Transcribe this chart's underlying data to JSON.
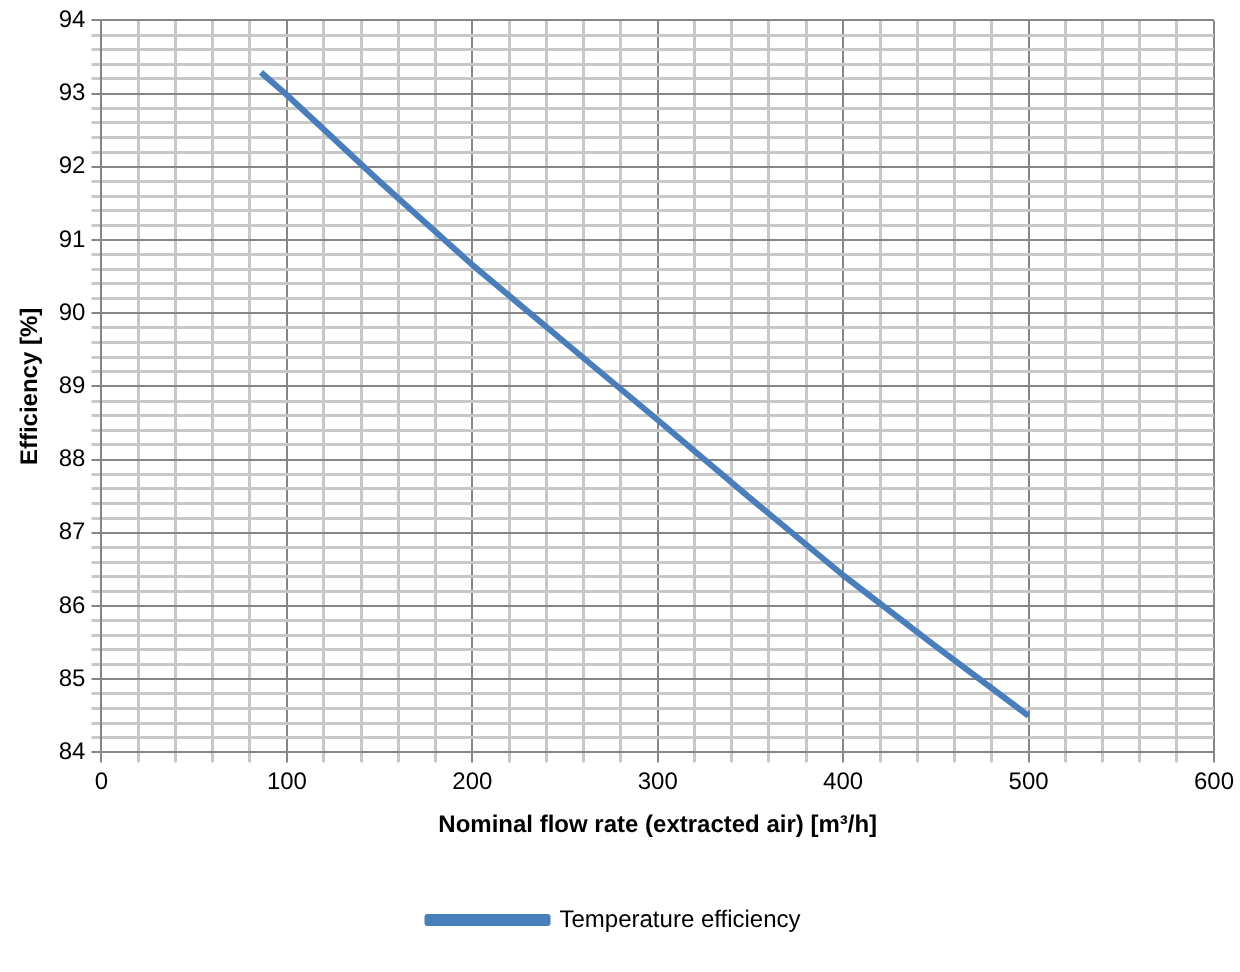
{
  "chart_data": {
    "type": "line",
    "xlabel": "Nominal flow rate (extracted air) [m³/h]",
    "ylabel": "Efficiency [%]",
    "x": [
      86,
      100,
      150,
      200,
      250,
      300,
      350,
      400,
      450,
      500
    ],
    "series": [
      {
        "name": "Temperature efficiency",
        "color": "#4a7ebb",
        "values": [
          93.29,
          92.98,
          91.8,
          90.66,
          89.6,
          88.54,
          87.47,
          86.42,
          85.45,
          84.5
        ]
      }
    ],
    "xlim": [
      0,
      600
    ],
    "xticks": [
      0,
      {
        "value": 20,
        "label": null
      },
      {
        "value": 40,
        "label": null
      },
      {
        "value": 60,
        "label": null
      },
      {
        "value": 80,
        "label": null
      },
      100,
      {
        "value": 120,
        "label": null
      },
      {
        "value": 140,
        "label": null
      },
      {
        "value": 160,
        "label": null
      },
      {
        "value": 180,
        "label": null
      },
      200,
      {
        "value": 220,
        "label": null
      },
      {
        "value": 240,
        "label": null
      },
      {
        "value": 260,
        "label": null
      },
      {
        "value": 280,
        "label": null
      },
      300,
      {
        "value": 320,
        "label": null
      },
      {
        "value": 340,
        "label": null
      },
      {
        "value": 360,
        "label": null
      },
      {
        "value": 380,
        "label": null
      },
      400,
      {
        "value": 420,
        "label": null
      },
      {
        "value": 440,
        "label": null
      },
      {
        "value": 460,
        "label": null
      },
      {
        "value": 480,
        "label": null
      },
      500,
      {
        "value": 520,
        "label": null
      },
      {
        "value": 540,
        "label": null
      },
      {
        "value": 560,
        "label": null
      },
      {
        "value": 580,
        "label": null
      },
      600
    ],
    "ylim": [
      84,
      94
    ],
    "yticks": [
      84,
      {
        "value": 84.2,
        "label": null
      },
      {
        "value": 84.4,
        "label": null
      },
      {
        "value": 84.6,
        "label": null
      },
      {
        "value": 84.8,
        "label": null
      },
      85,
      {
        "value": 85.2,
        "label": null
      },
      {
        "value": 85.4,
        "label": null
      },
      {
        "value": 85.6,
        "label": null
      },
      {
        "value": 85.8,
        "label": null
      },
      86,
      {
        "value": 86.2,
        "label": null
      },
      {
        "value": 86.4,
        "label": null
      },
      {
        "value": 86.6,
        "label": null
      },
      {
        "value": 86.8,
        "label": null
      },
      87,
      {
        "value": 87.2,
        "label": null
      },
      {
        "value": 87.4,
        "label": null
      },
      {
        "value": 87.6,
        "label": null
      },
      {
        "value": 87.8,
        "label": null
      },
      88,
      {
        "value": 88.2,
        "label": null
      },
      {
        "value": 88.4,
        "label": null
      },
      {
        "value": 88.6,
        "label": null
      },
      {
        "value": 88.8,
        "label": null
      },
      89,
      {
        "value": 89.2,
        "label": null
      },
      {
        "value": 89.4,
        "label": null
      },
      {
        "value": 89.6,
        "label": null
      },
      {
        "value": 89.8,
        "label": null
      },
      90,
      {
        "value": 90.2,
        "label": null
      },
      {
        "value": 90.4,
        "label": null
      },
      {
        "value": 90.6,
        "label": null
      },
      {
        "value": 90.8,
        "label": null
      },
      91,
      {
        "value": 91.2,
        "label": null
      },
      {
        "value": 91.4,
        "label": null
      },
      {
        "value": 91.6,
        "label": null
      },
      {
        "value": 91.8,
        "label": null
      },
      92,
      {
        "value": 92.2,
        "label": null
      },
      {
        "value": 92.4,
        "label": null
      },
      {
        "value": 92.6,
        "label": null
      },
      {
        "value": 92.8,
        "label": null
      },
      93,
      {
        "value": 93.2,
        "label": null
      },
      {
        "value": 93.4,
        "label": null
      },
      {
        "value": 93.6,
        "label": null
      },
      {
        "value": 93.8,
        "label": null
      },
      94
    ],
    "grid": true,
    "legend": "bottom",
    "marker": "none",
    "line_style": "solid"
  }
}
